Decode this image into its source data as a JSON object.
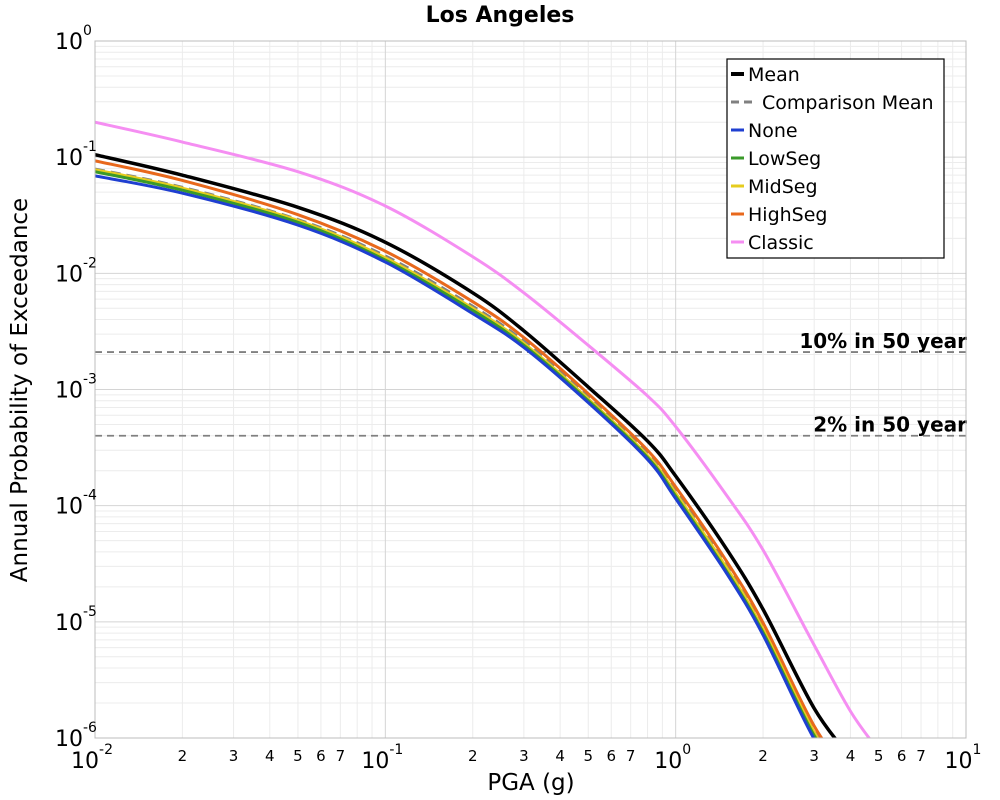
{
  "chart_data": {
    "type": "line",
    "title": "Los Angeles",
    "xlabel": "PGA (g)",
    "ylabel": "Annual Probability of Exceedance",
    "x_scale": "log",
    "y_scale": "log",
    "xlim": [
      0.01,
      10
    ],
    "ylim": [
      1e-06,
      1
    ],
    "grid": true,
    "legend_position": "top-right",
    "x_major_ticks": [
      {
        "value": 0.01,
        "base": "10",
        "exp": "-2"
      },
      {
        "value": 0.1,
        "base": "10",
        "exp": "-1"
      },
      {
        "value": 1,
        "base": "10",
        "exp": "0"
      },
      {
        "value": 10,
        "base": "10",
        "exp": "1"
      }
    ],
    "x_minor_ticks": [
      {
        "value": 0.02,
        "label": "2"
      },
      {
        "value": 0.03,
        "label": "3"
      },
      {
        "value": 0.04,
        "label": "4"
      },
      {
        "value": 0.05,
        "label": "5"
      },
      {
        "value": 0.06,
        "label": "6"
      },
      {
        "value": 0.07,
        "label": "7"
      },
      {
        "value": 0.2,
        "label": "2"
      },
      {
        "value": 0.3,
        "label": "3"
      },
      {
        "value": 0.4,
        "label": "4"
      },
      {
        "value": 0.5,
        "label": "5"
      },
      {
        "value": 0.6,
        "label": "6"
      },
      {
        "value": 0.7,
        "label": "7"
      },
      {
        "value": 2,
        "label": "2"
      },
      {
        "value": 3,
        "label": "3"
      },
      {
        "value": 4,
        "label": "4"
      },
      {
        "value": 5,
        "label": "5"
      },
      {
        "value": 6,
        "label": "6"
      },
      {
        "value": 7,
        "label": "7"
      }
    ],
    "y_major_ticks": [
      {
        "value": 1,
        "base": "10",
        "exp": "0"
      },
      {
        "value": 0.1,
        "base": "10",
        "exp": "-1"
      },
      {
        "value": 0.01,
        "base": "10",
        "exp": "-2"
      },
      {
        "value": 0.001,
        "base": "10",
        "exp": "-3"
      },
      {
        "value": 0.0001,
        "base": "10",
        "exp": "-4"
      },
      {
        "value": 1e-05,
        "base": "10",
        "exp": "-5"
      },
      {
        "value": 1e-06,
        "base": "10",
        "exp": "-6"
      }
    ],
    "reference_lines": [
      {
        "y": 0.0021,
        "label": "10% in 50 year",
        "color": "#808080",
        "style": "dashed"
      },
      {
        "y": 0.0004,
        "label": "2% in 50 year",
        "color": "#808080",
        "style": "dashed"
      }
    ],
    "x": [
      0.01,
      0.02,
      0.05,
      0.1,
      0.2,
      0.3,
      0.5,
      0.8,
      1.0,
      1.5,
      2.0,
      3.0,
      4.0,
      5.0
    ],
    "series": [
      {
        "name": "Mean",
        "color": "#000000",
        "style": "solid",
        "width": 3.5,
        "values": [
          0.105,
          0.07,
          0.037,
          0.0185,
          0.0068,
          0.0032,
          0.00105,
          0.00036,
          0.00018,
          4.2e-05,
          1.28e-05,
          1.8e-06,
          6.8e-07,
          null
        ]
      },
      {
        "name": "Comparison Mean",
        "color": "#808080",
        "style": "dashed",
        "width": 3,
        "values": [
          0.079,
          0.055,
          0.029,
          0.0141,
          0.0052,
          0.0026,
          0.00088,
          0.00029,
          0.000138,
          3.1e-05,
          9.2e-06,
          1.2e-06,
          4.2e-07,
          null
        ]
      },
      {
        "name": "None",
        "color": "#1f3fd1",
        "style": "solid",
        "width": 3,
        "values": [
          0.069,
          0.049,
          0.026,
          0.0125,
          0.0045,
          0.0023,
          0.00077,
          0.00025,
          0.000115,
          2.6e-05,
          7.7e-06,
          9.8e-07,
          3.6e-07,
          null
        ]
      },
      {
        "name": "LowSeg",
        "color": "#3a9a2a",
        "style": "solid",
        "width": 3,
        "values": [
          0.075,
          0.052,
          0.0275,
          0.013,
          0.0048,
          0.0024,
          0.0008,
          0.00026,
          0.000121,
          2.7e-05,
          8.1e-06,
          1.05e-06,
          3.9e-07,
          null
        ]
      },
      {
        "name": "MidSeg",
        "color": "#e6cc1e",
        "style": "solid",
        "width": 3,
        "values": [
          0.078,
          0.054,
          0.0285,
          0.0136,
          0.005,
          0.0025,
          0.00083,
          0.00027,
          0.000128,
          2.9e-05,
          8.6e-06,
          1.12e-06,
          4.1e-07,
          null
        ]
      },
      {
        "name": "HighSeg",
        "color": "#e8681c",
        "style": "solid",
        "width": 3,
        "values": [
          0.093,
          0.063,
          0.032,
          0.0155,
          0.0057,
          0.0028,
          0.00092,
          0.0003,
          0.000145,
          3.3e-05,
          9.8e-06,
          1.27e-06,
          4.7e-07,
          null
        ]
      },
      {
        "name": "Classic",
        "color": "#f58ef2",
        "style": "solid",
        "width": 3,
        "values": [
          0.2,
          0.135,
          0.075,
          0.038,
          0.0139,
          0.0068,
          0.0024,
          0.00088,
          0.00048,
          0.000122,
          4.15e-05,
          6.3e-06,
          1.7e-06,
          7.8e-07
        ]
      }
    ]
  }
}
